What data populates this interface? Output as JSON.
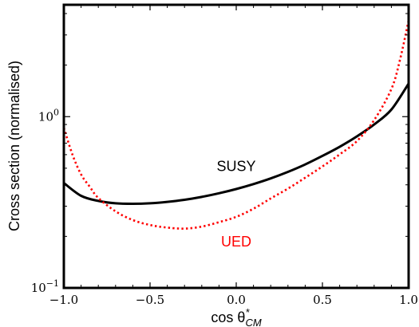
{
  "chart_data": {
    "type": "line",
    "xlabel": "cos θ*CM",
    "xlabel_parts": {
      "base": "cos θ",
      "sup": "*",
      "sub": "CM"
    },
    "ylabel": "Cross section (normalised)",
    "xlim": [
      -1.0,
      1.0
    ],
    "ylim": [
      0.1,
      4.5
    ],
    "yscale": "log",
    "grid": false,
    "x_ticks": [
      -1.0,
      -0.5,
      0.0,
      0.5,
      1.0
    ],
    "x_tick_labels": [
      "−1.0",
      "−0.5",
      "0.0",
      "0.5",
      "1.0"
    ],
    "y_ticks": [
      {
        "value": 0.1,
        "base": "10",
        "exp": "−1"
      },
      {
        "value": 1.0,
        "base": "10",
        "exp": "0"
      }
    ],
    "series": [
      {
        "name": "SUSY",
        "color": "#000000",
        "style": "solid",
        "label_pos": {
          "x": 0.0,
          "y": 0.48
        },
        "x": [
          -1.0,
          -0.9,
          -0.8,
          -0.7,
          -0.6,
          -0.5,
          -0.4,
          -0.3,
          -0.2,
          -0.1,
          0.0,
          0.1,
          0.2,
          0.3,
          0.4,
          0.5,
          0.6,
          0.7,
          0.8,
          0.9,
          1.0
        ],
        "y": [
          0.41,
          0.345,
          0.322,
          0.312,
          0.31,
          0.312,
          0.318,
          0.327,
          0.34,
          0.357,
          0.378,
          0.404,
          0.436,
          0.476,
          0.526,
          0.59,
          0.667,
          0.767,
          0.9,
          1.1,
          1.56
        ]
      },
      {
        "name": "UED",
        "color": "#ff0000",
        "style": "dotted",
        "label_pos": {
          "x": 0.0,
          "y": 0.175
        },
        "x": [
          -1.0,
          -0.95,
          -0.9,
          -0.85,
          -0.8,
          -0.7,
          -0.6,
          -0.5,
          -0.4,
          -0.3,
          -0.2,
          -0.1,
          0.0,
          0.1,
          0.2,
          0.3,
          0.4,
          0.5,
          0.6,
          0.7,
          0.8,
          0.9,
          0.95,
          1.0
        ],
        "y": [
          0.86,
          0.6,
          0.46,
          0.39,
          0.335,
          0.28,
          0.249,
          0.233,
          0.225,
          0.222,
          0.228,
          0.242,
          0.26,
          0.29,
          0.333,
          0.38,
          0.44,
          0.512,
          0.602,
          0.72,
          0.955,
          1.45,
          2.15,
          3.65
        ]
      }
    ]
  }
}
